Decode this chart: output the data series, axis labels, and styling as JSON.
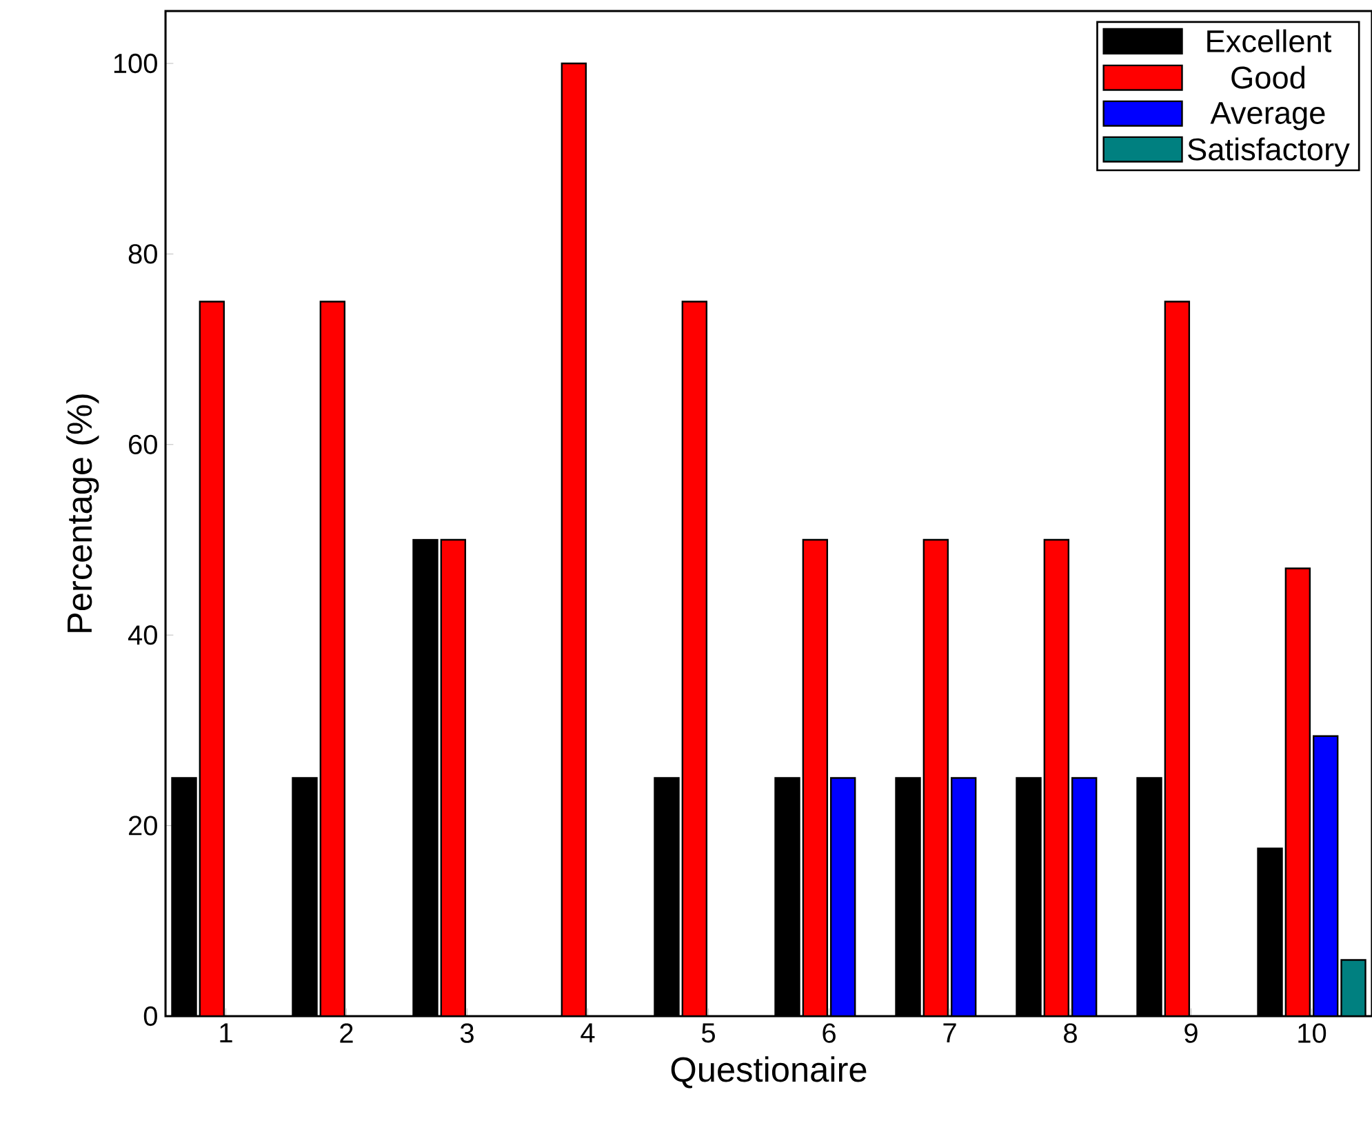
{
  "chart_data": {
    "type": "bar",
    "xlabel": "Questionaire",
    "ylabel": "Percentage (%)",
    "categories": [
      "1",
      "2",
      "3",
      "4",
      "5",
      "6",
      "7",
      "8",
      "9",
      "10"
    ],
    "series": [
      {
        "name": "Excellent",
        "color": "#000000",
        "values": [
          25,
          25,
          50,
          null,
          25,
          25,
          25,
          25,
          25,
          17.6
        ]
      },
      {
        "name": "Good",
        "color": "#ff0000",
        "values": [
          75,
          75,
          50,
          100,
          75,
          50,
          50,
          50,
          75,
          47
        ]
      },
      {
        "name": "Average",
        "color": "#0000ff",
        "values": [
          null,
          null,
          null,
          null,
          null,
          25,
          25,
          25,
          null,
          29.4
        ]
      },
      {
        "name": "Satisfactory",
        "color": "#008080",
        "values": [
          null,
          null,
          null,
          null,
          null,
          null,
          null,
          null,
          null,
          5.9
        ]
      }
    ],
    "ylim": [
      0,
      105.5
    ],
    "yticks": [
      0,
      20,
      40,
      60,
      80,
      100
    ],
    "grid": false,
    "legend": "top right"
  }
}
